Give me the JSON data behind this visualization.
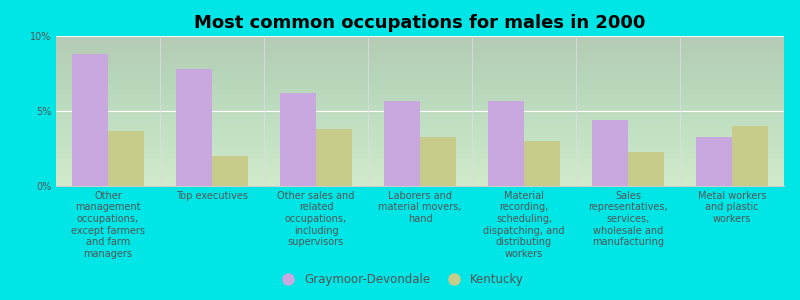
{
  "title": "Most common occupations for males in 2000",
  "background_color": "#00e5e5",
  "plot_bg_top": "#e8f0d0",
  "plot_bg_bottom": "#f8faf0",
  "categories": [
    "Other\nmanagement\noccupations,\nexcept farmers\nand farm\nmanagers",
    "Top executives",
    "Other sales and\nrelated\noccupations,\nincluding\nsupervisors",
    "Laborers and\nmaterial movers,\nhand",
    "Material\nrecording,\nscheduling,\ndispatching, and\ndistributing\nworkers",
    "Sales\nrepresentatives,\nservices,\nwholesale and\nmanufacturing",
    "Metal workers\nand plastic\nworkers"
  ],
  "graymoor_values": [
    8.8,
    7.8,
    6.2,
    5.7,
    5.7,
    4.4,
    3.3
  ],
  "kentucky_values": [
    3.7,
    2.0,
    3.8,
    3.3,
    3.0,
    2.3,
    4.0
  ],
  "graymoor_color": "#c9a8e0",
  "kentucky_color": "#c8cc8a",
  "ylim": [
    0,
    10
  ],
  "yticks": [
    0,
    5,
    10
  ],
  "ytick_labels": [
    "0%",
    "5%",
    "10%"
  ],
  "legend_labels": [
    "Graymoor-Devondale",
    "Kentucky"
  ],
  "title_fontsize": 13,
  "tick_fontsize": 7.0,
  "legend_fontsize": 8.5,
  "bar_width": 0.35
}
